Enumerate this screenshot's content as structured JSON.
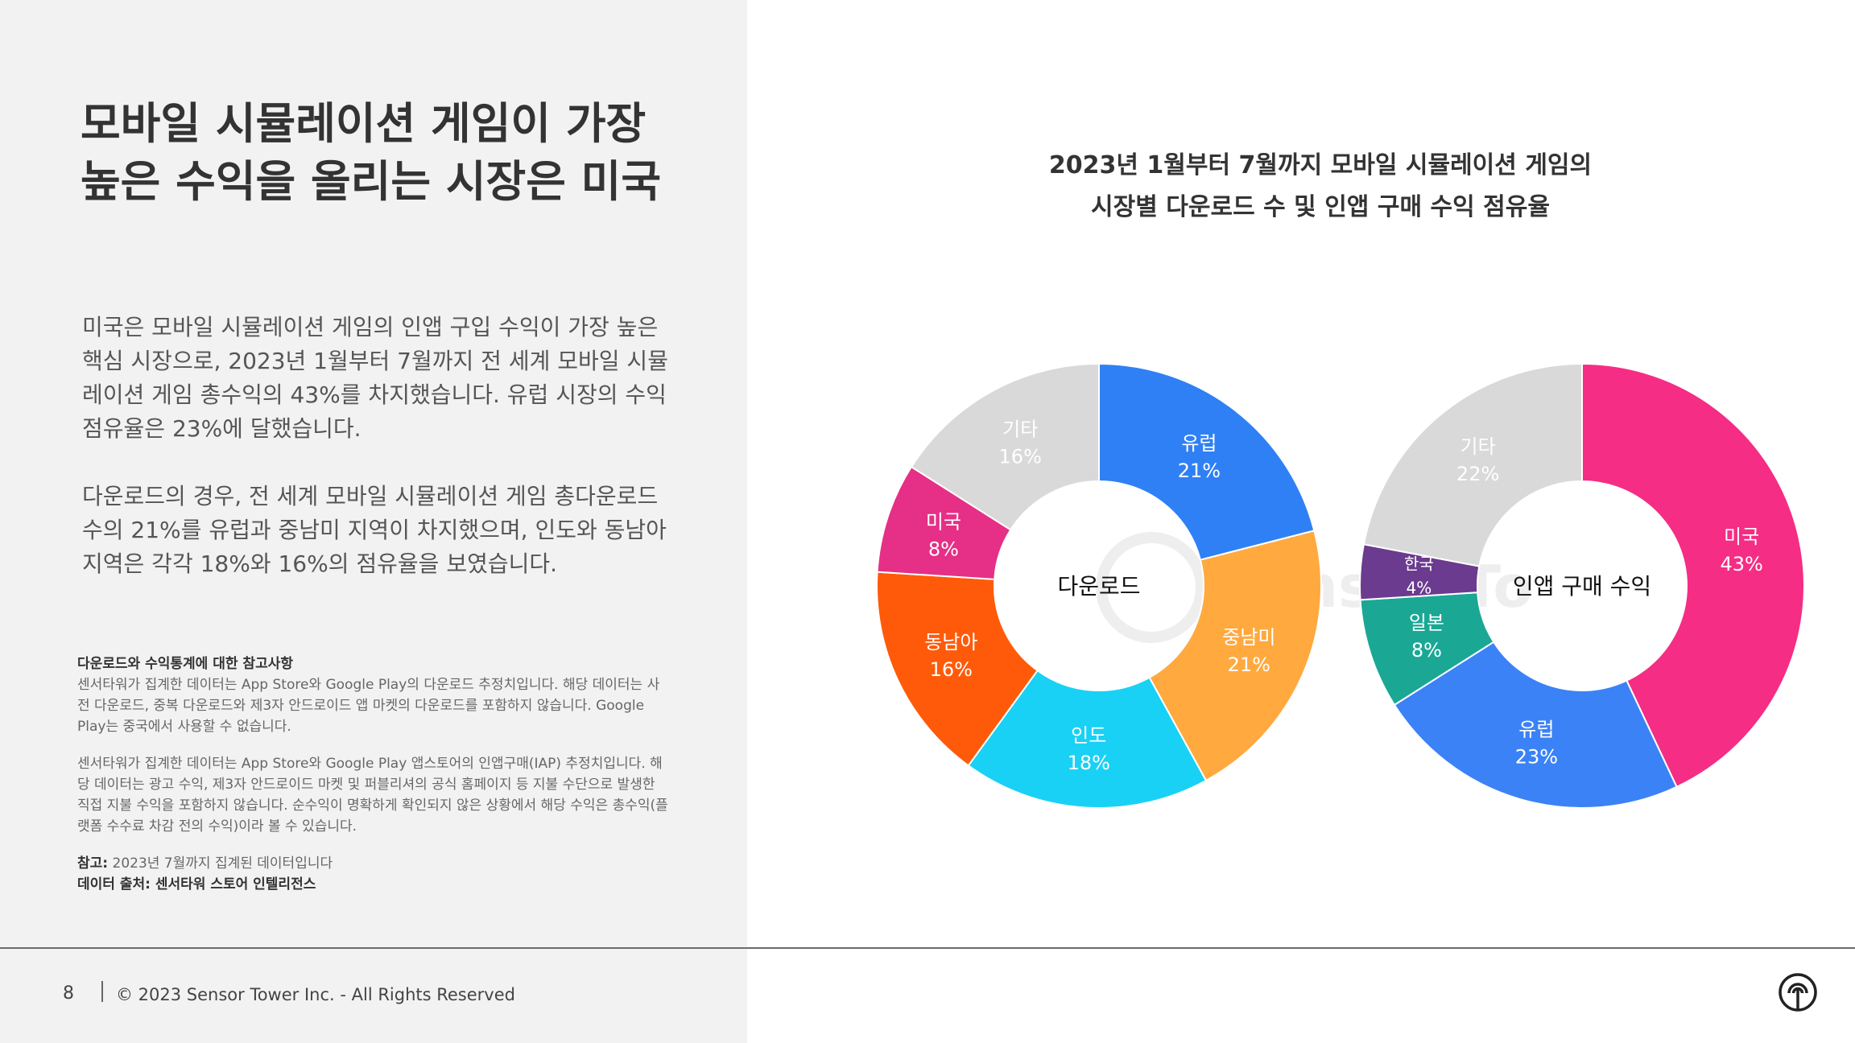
{
  "headline": {
    "line1": "모바일 시뮬레이션 게임이 가장",
    "line2": "높은 수익을 올리는 시장은 미국"
  },
  "body": {
    "para1_lines": [
      "미국은 모바일 시뮬레이션 게임의 인앱 구입 수익이 가장 높은",
      "핵심 시장으로, 2023년 1월부터 7월까지 전 세계 모바일 시뮬",
      "레이션 게임 총수익의 43%를 차지했습니다. 유럽 시장의 수익",
      "점유율은 23%에 달했습니다."
    ],
    "para2_lines": [
      "다운로드의 경우, 전 세계 모바일 시뮬레이션 게임 총다운로드",
      "수의 21%를 유럽과 중남미 지역이 차지했으며, 인도와 동남아",
      "지역은 각각 18%와 16%의 점유율을 보였습니다."
    ]
  },
  "notes": {
    "heading": "다운로드와 수익통계에 대한 참고사항",
    "para1_lines": [
      "센서타워가 집계한 데이터는 App Store와 Google Play의 다운로드 추정치입니다. 해당 데이터는 사",
      "전 다운로드, 중복 다운로드와 제3자 안드로이드 앱 마켓의 다운로드를 포함하지 않습니다. Google",
      "Play는 중국에서 사용할 수 없습니다."
    ],
    "para2_lines": [
      "센서타워가 집계한 데이터는 App Store와 Google Play 앱스토어의 인앱구매(IAP) 추정치입니다. 해",
      "당 데이터는 광고 수익, 제3자 안드로이드 마켓 및 퍼블리셔의 공식 홈페이지 등 지불 수단으로 발생한",
      "직접 지불 수익을 포함하지 않습니다. 순수익이 명확하게 확인되지 않은 상황에서 해당 수익은 총수익(플",
      "랫폼 수수료 차감 전의 수익)이라 볼 수 있습니다."
    ],
    "ref_label": "참고:",
    "ref_text": " 2023년 7월까지 집계된 데이터입니다",
    "source_label": "데이터 출처:",
    "source_text": " 센서타워 스토어 인텔리전스"
  },
  "footer": {
    "page_number": "8",
    "copyright": "© 2023 Sensor Tower Inc. - All Rights Reserved"
  },
  "watermark": "Sensor Tower",
  "chart_title": {
    "line1": "2023년 1월부터 7월까지 모바일 시뮬레이션 게임의",
    "line2": "시장별 다운로드 수 및 인앱 구매 수익 점유율"
  },
  "chart_data": [
    {
      "type": "pie",
      "center_label": "다운로드",
      "slices": [
        {
          "label": "유럽",
          "value": 21,
          "value_label": "21%",
          "color": "#2f80f5"
        },
        {
          "label": "중남미",
          "value": 21,
          "value_label": "21%",
          "color": "#ffa93f"
        },
        {
          "label": "인도",
          "value": 18,
          "value_label": "18%",
          "color": "#19d1f5"
        },
        {
          "label": "동남아",
          "value": 16,
          "value_label": "16%",
          "color": "#ff5a09"
        },
        {
          "label": "미국",
          "value": 8,
          "value_label": "8%",
          "color": "#e62f86"
        },
        {
          "label": "기타",
          "value": 16,
          "value_label": "16%",
          "color": "#d9d9d9"
        }
      ]
    },
    {
      "type": "pie",
      "center_label": "인앱 구매 수익",
      "slices": [
        {
          "label": "미국",
          "value": 43,
          "value_label": "43%",
          "color": "#f52d84"
        },
        {
          "label": "유럽",
          "value": 23,
          "value_label": "23%",
          "color": "#3b82f6"
        },
        {
          "label": "일본",
          "value": 8,
          "value_label": "8%",
          "color": "#1aa895"
        },
        {
          "label": "한국",
          "value": 4,
          "value_label": "4%",
          "color": "#6b3b8f"
        },
        {
          "label": "기타",
          "value": 22,
          "value_label": "22%",
          "color": "#d9d9d9"
        }
      ]
    }
  ],
  "colors": {
    "panel_bg": "#f2f2f2",
    "text_dark": "#333333",
    "label_light": "#ffffff",
    "label_on_grey": "#ffffff"
  }
}
